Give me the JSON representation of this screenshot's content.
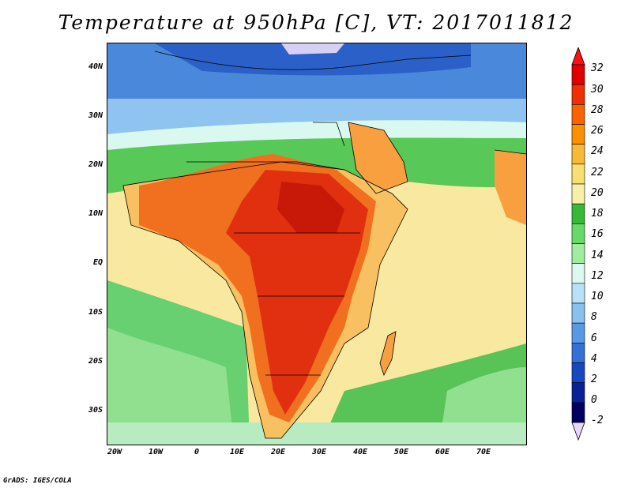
{
  "title": "Temperature at 950hPa [C], VT: 2017011812",
  "footer": "GrADS: IGES/COLA",
  "lat_labels": [
    "40N",
    "30N",
    "20N",
    "10N",
    "EQ",
    "10S",
    "20S",
    "30S"
  ],
  "lon_labels": [
    "20W",
    "10W",
    "0",
    "10E",
    "20E",
    "30E",
    "40E",
    "50E",
    "60E",
    "70E"
  ],
  "colorbar": {
    "labels": [
      "32",
      "30",
      "28",
      "26",
      "24",
      "22",
      "20",
      "18",
      "16",
      "14",
      "12",
      "10",
      "8",
      "6",
      "4",
      "2",
      "0",
      "-2"
    ],
    "colors": [
      "#e00000",
      "#f03000",
      "#f86400",
      "#fc9000",
      "#f8b838",
      "#f8e070",
      "#f8f0a8",
      "#38b838",
      "#68d868",
      "#a0eca0",
      "#dcf8f0",
      "#b8e0f8",
      "#88c0f0",
      "#5898e4",
      "#3470d8",
      "#1848c0",
      "#082098",
      "#000060"
    ],
    "top_arrow": "#ff1010",
    "bottom_arrow": "#e8d8f8"
  }
}
